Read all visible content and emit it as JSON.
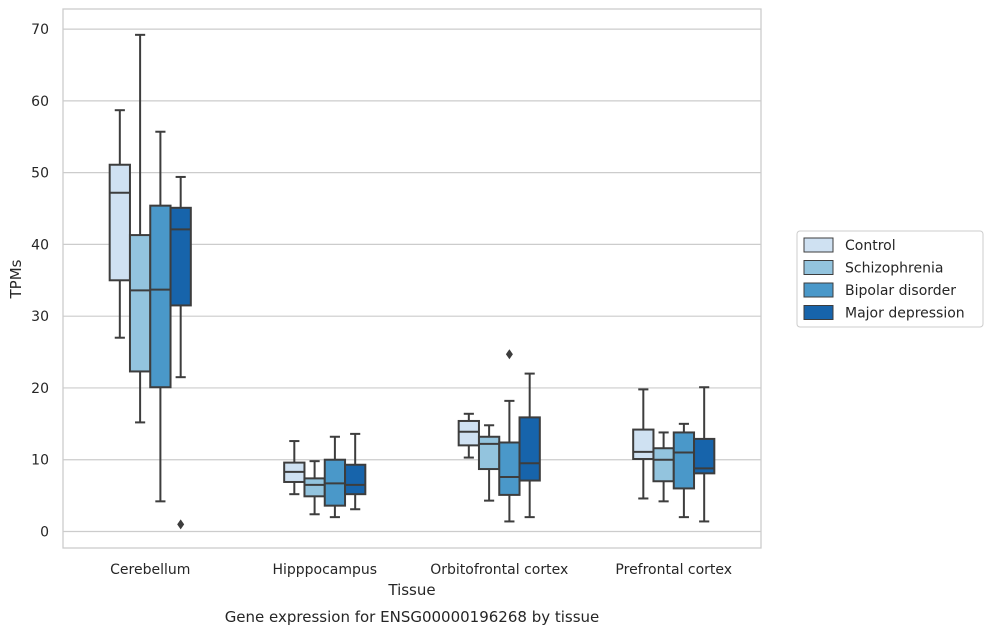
{
  "chart_data": {
    "type": "boxplot",
    "title": "",
    "caption": "Gene expression for ENSG00000196268 by tissue",
    "xlabel": "Tissue",
    "ylabel": "TPMs",
    "ylim": [
      -2.3,
      72.8
    ],
    "yticks": [
      0,
      10,
      20,
      30,
      40,
      50,
      60,
      70
    ],
    "grid": "horizontal",
    "legend_position": "right",
    "categories": [
      "Cerebellum",
      "Hipppocampus",
      "Orbitofrontal cortex",
      "Prefrontal cortex"
    ],
    "series": [
      {
        "name": "Control",
        "color": "#cfe1f2",
        "boxes": [
          {
            "whislo": 27.0,
            "q1": 35.0,
            "med": 47.2,
            "q3": 51.1,
            "whishi": 58.7,
            "fliers": []
          },
          {
            "whislo": 5.2,
            "q1": 6.9,
            "med": 8.3,
            "q3": 9.6,
            "whishi": 12.6,
            "fliers": []
          },
          {
            "whislo": 10.3,
            "q1": 12.0,
            "med": 13.9,
            "q3": 15.4,
            "whishi": 16.4,
            "fliers": []
          },
          {
            "whislo": 4.6,
            "q1": 10.1,
            "med": 11.1,
            "q3": 14.2,
            "whishi": 19.8,
            "fliers": []
          }
        ]
      },
      {
        "name": "Schizophrenia",
        "color": "#93c4de",
        "boxes": [
          {
            "whislo": 15.2,
            "q1": 22.3,
            "med": 33.6,
            "q3": 41.3,
            "whishi": 69.2,
            "fliers": []
          },
          {
            "whislo": 2.4,
            "q1": 4.9,
            "med": 6.5,
            "q3": 7.4,
            "whishi": 9.8,
            "fliers": []
          },
          {
            "whislo": 4.3,
            "q1": 8.7,
            "med": 12.2,
            "q3": 13.2,
            "whishi": 14.8,
            "fliers": []
          },
          {
            "whislo": 4.2,
            "q1": 7.0,
            "med": 10.0,
            "q3": 11.6,
            "whishi": 13.8,
            "fliers": []
          }
        ]
      },
      {
        "name": "Bipolar disorder",
        "color": "#4a98c9",
        "boxes": [
          {
            "whislo": 4.2,
            "q1": 20.1,
            "med": 33.7,
            "q3": 45.4,
            "whishi": 55.7,
            "fliers": []
          },
          {
            "whislo": 2.0,
            "q1": 3.6,
            "med": 6.7,
            "q3": 10.0,
            "whishi": 13.2,
            "fliers": []
          },
          {
            "whislo": 1.4,
            "q1": 5.1,
            "med": 7.6,
            "q3": 12.4,
            "whishi": 18.2,
            "fliers": [
              24.7
            ]
          },
          {
            "whislo": 2.0,
            "q1": 6.0,
            "med": 11.0,
            "q3": 13.8,
            "whishi": 15.0,
            "fliers": []
          }
        ]
      },
      {
        "name": "Major depression",
        "color": "#1764ab",
        "boxes": [
          {
            "whislo": 21.5,
            "q1": 31.5,
            "med": 42.1,
            "q3": 45.1,
            "whishi": 49.4,
            "fliers": [
              1.0
            ]
          },
          {
            "whislo": 3.1,
            "q1": 5.2,
            "med": 6.5,
            "q3": 9.3,
            "whishi": 13.6,
            "fliers": []
          },
          {
            "whislo": 2.0,
            "q1": 7.1,
            "med": 9.5,
            "q3": 15.9,
            "whishi": 22.0,
            "fliers": []
          },
          {
            "whislo": 1.4,
            "q1": 8.1,
            "med": 8.8,
            "q3": 12.9,
            "whishi": 20.1,
            "fliers": []
          }
        ]
      }
    ]
  }
}
